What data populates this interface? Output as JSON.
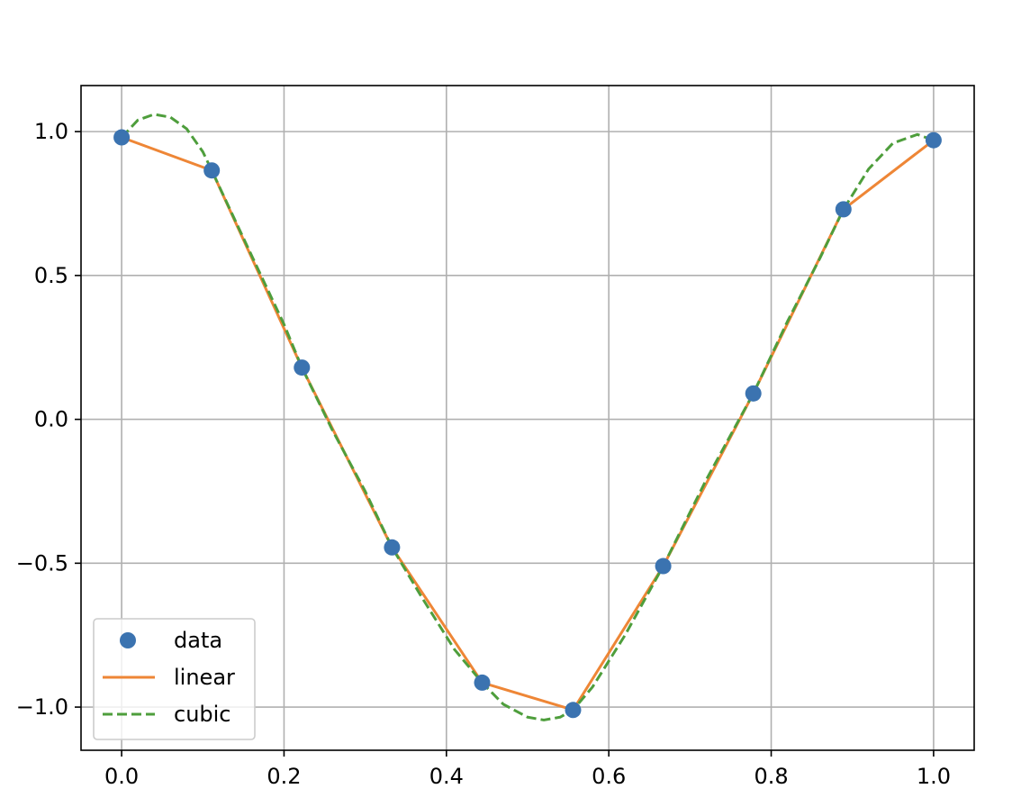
{
  "chart_data": {
    "type": "line",
    "grid": true,
    "legend_position": "lower-left",
    "xlim": [
      -0.05,
      1.05
    ],
    "ylim": [
      -1.15,
      1.16
    ],
    "x_ticks": [
      0.0,
      0.2,
      0.4,
      0.6,
      0.8,
      1.0
    ],
    "x_tick_labels": [
      "0.0",
      "0.2",
      "0.4",
      "0.6",
      "0.8",
      "1.0"
    ],
    "y_ticks": [
      1.0,
      0.5,
      0.0,
      -0.5,
      -1.0
    ],
    "y_tick_labels": [
      "1.0",
      "0.5",
      "0.0",
      "−0.5",
      "−1.0"
    ],
    "series": [
      {
        "name": "data",
        "kind": "scatter",
        "color": "#3b73b0",
        "x": [
          0.0,
          0.111,
          0.222,
          0.333,
          0.444,
          0.556,
          0.667,
          0.778,
          0.889,
          1.0
        ],
        "y": [
          0.98,
          0.865,
          0.18,
          -0.445,
          -0.915,
          -1.01,
          -0.51,
          0.09,
          0.73,
          0.97
        ]
      },
      {
        "name": "linear",
        "kind": "line",
        "color": "#ee8636",
        "dash": "solid",
        "x": [
          0.0,
          0.111,
          0.222,
          0.333,
          0.444,
          0.556,
          0.667,
          0.778,
          0.889,
          1.0
        ],
        "y": [
          0.98,
          0.865,
          0.18,
          -0.445,
          -0.915,
          -1.01,
          -0.51,
          0.09,
          0.73,
          0.97
        ]
      },
      {
        "name": "cubic",
        "kind": "line",
        "color": "#4e9e3c",
        "dash": "dashed",
        "x": [
          0.0,
          0.02,
          0.04,
          0.06,
          0.08,
          0.1,
          0.111,
          0.15,
          0.2,
          0.222,
          0.26,
          0.3,
          0.333,
          0.37,
          0.41,
          0.444,
          0.47,
          0.5,
          0.52,
          0.54,
          0.556,
          0.58,
          0.62,
          0.667,
          0.72,
          0.778,
          0.82,
          0.86,
          0.889,
          0.92,
          0.95,
          0.98,
          1.0
        ],
        "y": [
          0.98,
          1.04,
          1.06,
          1.05,
          1.01,
          0.93,
          0.865,
          0.63,
          0.33,
          0.18,
          -0.04,
          -0.25,
          -0.445,
          -0.62,
          -0.8,
          -0.915,
          -0.99,
          -1.035,
          -1.045,
          -1.035,
          -1.01,
          -0.93,
          -0.75,
          -0.51,
          -0.21,
          0.09,
          0.34,
          0.56,
          0.73,
          0.87,
          0.96,
          0.99,
          0.97
        ]
      }
    ]
  }
}
